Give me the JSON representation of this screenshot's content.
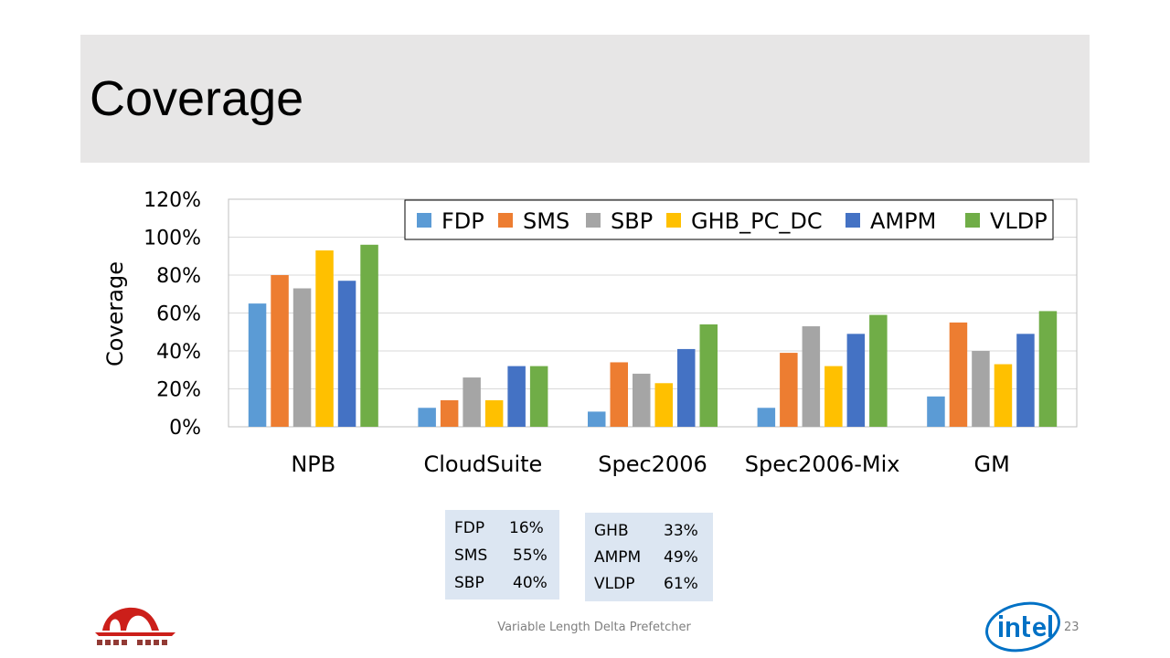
{
  "slide": {
    "title": "Coverage",
    "footer": "Variable Length Delta Prefetcher",
    "page_number": "23"
  },
  "chart_data": {
    "type": "bar",
    "ylabel": "Coverage",
    "ylim": [
      0,
      1.2
    ],
    "yticks": [
      0,
      0.2,
      0.4,
      0.6,
      0.8,
      1.0,
      1.2
    ],
    "ytick_labels": [
      "0%",
      "20%",
      "40%",
      "60%",
      "80%",
      "100%",
      "120%"
    ],
    "grid": true,
    "legend": "top",
    "categories": [
      "NPB",
      "CloudSuite",
      "Spec2006",
      "Spec2006-Mix",
      "GM"
    ],
    "series": [
      {
        "name": "FDP",
        "color": "#5b9bd5",
        "values": [
          0.65,
          0.1,
          0.08,
          0.1,
          0.16
        ]
      },
      {
        "name": "SMS",
        "color": "#ed7d31",
        "values": [
          0.8,
          0.14,
          0.34,
          0.39,
          0.55
        ]
      },
      {
        "name": "SBP",
        "color": "#a5a5a5",
        "values": [
          0.73,
          0.26,
          0.28,
          0.53,
          0.4
        ]
      },
      {
        "name": "GHB_PC_DC",
        "color": "#ffc000",
        "values": [
          0.93,
          0.14,
          0.23,
          0.32,
          0.33
        ]
      },
      {
        "name": "AMPM",
        "color": "#4472c4",
        "values": [
          0.77,
          0.32,
          0.41,
          0.49,
          0.49
        ]
      },
      {
        "name": "VLDP",
        "color": "#70ad47",
        "values": [
          0.96,
          0.32,
          0.54,
          0.59,
          0.61
        ]
      }
    ]
  },
  "callouts": [
    {
      "rows": [
        {
          "label": "FDP",
          "value": "16%"
        },
        {
          "label": "SMS",
          "value": "55%"
        },
        {
          "label": "SBP",
          "value": "40%"
        }
      ]
    },
    {
      "rows": [
        {
          "label": "GHB",
          "value": "33%"
        },
        {
          "label": "AMPM",
          "value": "49%"
        },
        {
          "label": "VLDP",
          "value": "61%"
        }
      ]
    }
  ]
}
